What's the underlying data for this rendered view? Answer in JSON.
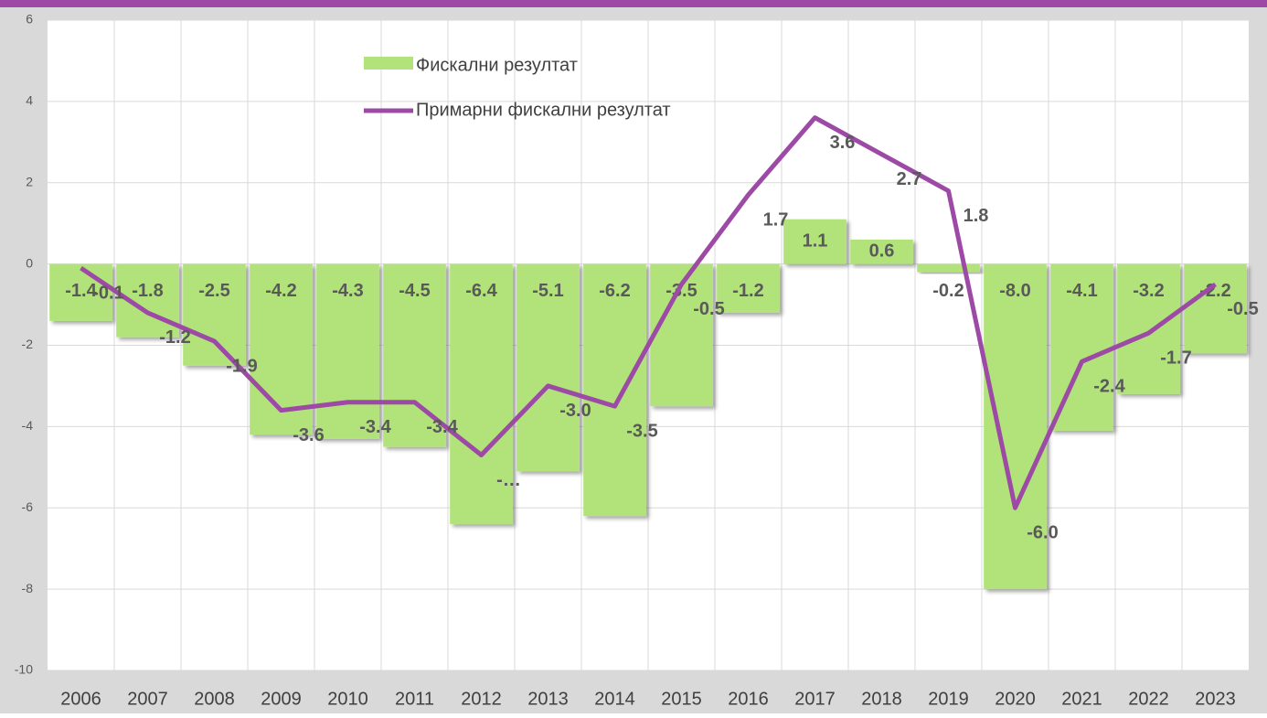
{
  "chart_data": {
    "type": "bar_line",
    "categories": [
      "2006",
      "2007",
      "2008",
      "2009",
      "2010",
      "2011",
      "2012",
      "2013",
      "2014",
      "2015",
      "2016",
      "2017",
      "2018",
      "2019",
      "2020",
      "2021",
      "2022",
      "2023"
    ],
    "series": [
      {
        "name": "Фискални резултат",
        "type": "bar",
        "color": "#b2e37a",
        "values": [
          -1.4,
          -1.8,
          -2.5,
          -4.2,
          -4.3,
          -4.5,
          -6.4,
          -5.1,
          -6.2,
          -3.5,
          -1.2,
          1.1,
          0.6,
          -0.2,
          -8.0,
          -4.1,
          -3.2,
          -2.2
        ],
        "value_labels": [
          "-1.4",
          "-1.8",
          "-2.5",
          "-4.2",
          "-4.3",
          "-4.5",
          "-6.4",
          "-5.1",
          "-6.2",
          "-3.5",
          "-1.2",
          "1.1",
          "0.6",
          "-0.2",
          "-8.0",
          "-4.1",
          "-3.2",
          "-2.2"
        ]
      },
      {
        "name": "Примарни фискални резултат",
        "type": "line",
        "color": "#9c4aa5",
        "values": [
          -0.1,
          -1.2,
          -1.9,
          -3.6,
          -3.4,
          -3.4,
          -4.7,
          -3.0,
          -3.5,
          -0.5,
          1.7,
          3.6,
          2.7,
          1.8,
          -6.0,
          -2.4,
          -1.7,
          -0.5
        ],
        "value_labels": [
          "-0.1",
          "-1.2",
          "-1.9",
          "-3.6",
          "-3.4",
          "-3.4",
          "-…",
          "-3.0",
          "-3.5",
          "-0.5",
          "1.7",
          "3.6",
          "2.7",
          "1.8",
          "-6.0",
          "-2.4",
          "-1.7",
          "-0.5"
        ]
      }
    ],
    "ylim": [
      -10,
      6
    ],
    "yticks": [
      -10,
      -8,
      -6,
      -4,
      -2,
      0,
      2,
      4,
      6
    ],
    "grid": true
  }
}
